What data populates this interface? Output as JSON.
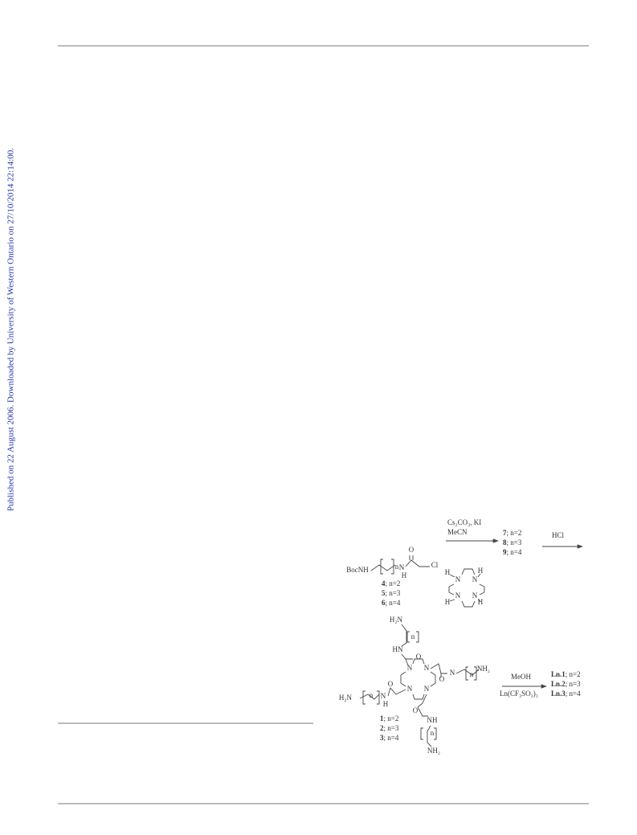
{
  "watermark": "Published on 22 August 2006. Downloaded by University of Western Ontario on 27/10/2014 22:14:00.",
  "scheme": {
    "reagents_step1": [
      "Cs₂CO₃, KI",
      "MeCN"
    ],
    "reagent_step2": "HCl",
    "reagents_step3": [
      "MeOH",
      "Ln(CF₃SO₃)₃"
    ],
    "atom_labels": [
      "BocNH",
      "n",
      "N",
      "H",
      "O",
      "Cl",
      "N",
      "N",
      "N",
      "N",
      "H",
      "H",
      "H",
      "H",
      "H₂N",
      "n",
      "HN",
      "O",
      "N",
      "N",
      "N",
      "N",
      "N",
      "n",
      "NH₂",
      "O",
      "H₂N",
      "n",
      "N",
      "H",
      "O",
      "O",
      "NH",
      "n",
      "NH₂"
    ],
    "compounds_456": [
      {
        "id": "4",
        "text": "; n=2"
      },
      {
        "id": "5",
        "text": "; n=3"
      },
      {
        "id": "6",
        "text": "; n=4"
      }
    ],
    "compounds_789": [
      {
        "id": "7",
        "text": "; n=2"
      },
      {
        "id": "8",
        "text": "; n=3"
      },
      {
        "id": "9",
        "text": "; n=4"
      }
    ],
    "compounds_123": [
      {
        "id": "1",
        "text": "; n=2"
      },
      {
        "id": "2",
        "text": "; n=3"
      },
      {
        "id": "3",
        "text": "; n=4"
      }
    ],
    "complexes": [
      {
        "id": "Ln.1",
        "text": "; n=2"
      },
      {
        "id": "Ln.2",
        "text": "; n=3"
      },
      {
        "id": "Ln.3",
        "text": "; n=4"
      }
    ]
  }
}
